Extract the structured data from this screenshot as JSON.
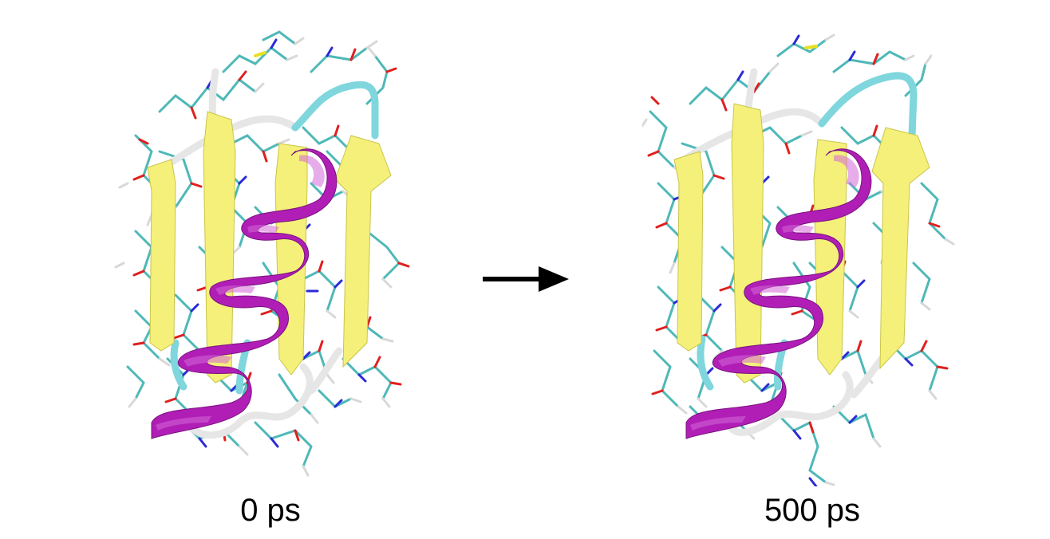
{
  "panels": [
    {
      "caption": "0 ps"
    },
    {
      "caption": "500 ps"
    }
  ],
  "colors": {
    "helix": "#b01eb6",
    "sheet": "#f4f07a",
    "coil": "#e6e6e6",
    "turn": "#7fd6dd",
    "carbon": "#4fb8b8",
    "oxygen": "#e0201e",
    "nitrogen": "#2a2ad8",
    "hydrogen": "#d8d8d8",
    "sulfur": "#e8e020",
    "arrow": "#000000"
  },
  "icons": {
    "transition": "right-arrow-icon"
  }
}
